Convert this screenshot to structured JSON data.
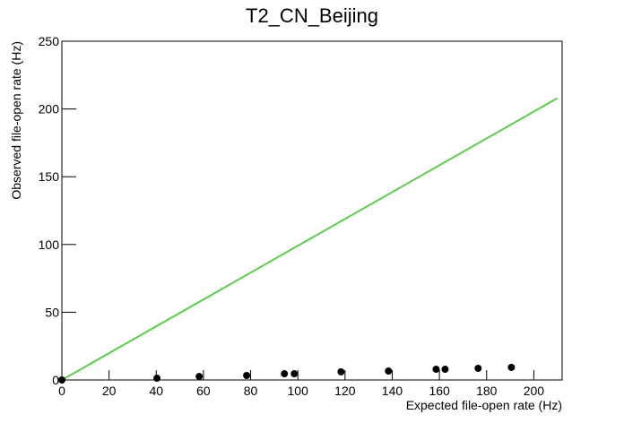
{
  "chart_data": {
    "type": "scatter",
    "title": "T2_CN_Beijing",
    "x_label": "Expected file-open rate (Hz)",
    "y_label": "Observed file-open rate (Hz)",
    "x": [
      0,
      40.3,
      58.2,
      78.3,
      94.3,
      98.5,
      118.3,
      138.4,
      158.6,
      162.4,
      176.4,
      190.5
    ],
    "values": [
      0,
      1.3,
      2.6,
      3.3,
      4.6,
      4.6,
      6,
      6.6,
      7.9,
      7.9,
      8.6,
      9.3
    ],
    "color": "#000000",
    "reference_line": {
      "x": [
        0,
        210
      ],
      "values": [
        0,
        208
      ],
      "color": "#5ccc4c"
    },
    "xlim": [
      0,
      212
    ],
    "ylim": [
      0,
      250
    ],
    "xticks": [
      0,
      20,
      40,
      60,
      80,
      100,
      120,
      140,
      160,
      180,
      200
    ],
    "yticks": [
      0,
      50,
      100,
      150,
      200,
      250
    ]
  }
}
